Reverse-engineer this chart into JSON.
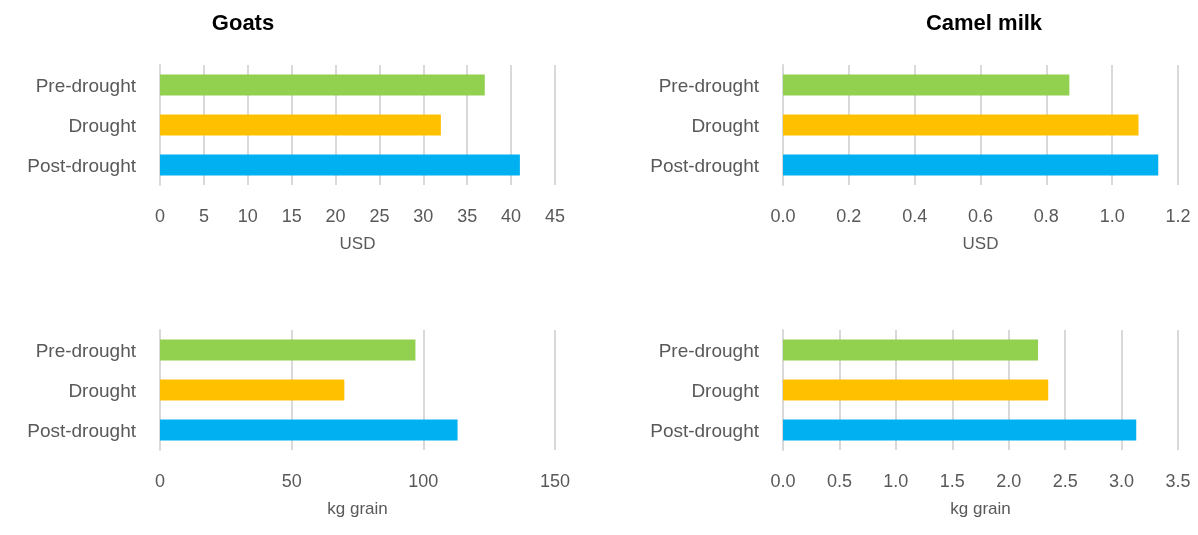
{
  "chart_data": [
    {
      "type": "bar",
      "orientation": "horizontal",
      "title": "Goats",
      "xlabel": "USD",
      "categories": [
        "Pre-drought",
        "Drought",
        "Post-drought"
      ],
      "values": [
        37,
        32,
        41
      ],
      "colors": [
        "#92d050",
        "#ffc000",
        "#00b0f0"
      ],
      "xlim": [
        0,
        45
      ],
      "xticks": [
        0,
        5,
        10,
        15,
        20,
        25,
        30,
        35,
        40,
        45
      ],
      "grid": "x"
    },
    {
      "type": "bar",
      "orientation": "horizontal",
      "title": "Camel milk",
      "xlabel": "USD",
      "categories": [
        "Pre-drought",
        "Drought",
        "Post-drought"
      ],
      "values": [
        0.87,
        1.08,
        1.14
      ],
      "colors": [
        "#92d050",
        "#ffc000",
        "#00b0f0"
      ],
      "xlim": [
        0,
        1.2
      ],
      "xticks": [
        {
          "value": 0,
          "label": "0.0"
        },
        0.2,
        0.4,
        0.6,
        0.8,
        {
          "value": 1,
          "label": "1.0"
        },
        1.2
      ],
      "grid": "x"
    },
    {
      "type": "bar",
      "orientation": "horizontal",
      "xlabel": "kg grain",
      "categories": [
        "Pre-drought",
        "Drought",
        "Post-drought"
      ],
      "values": [
        97,
        70,
        113
      ],
      "colors": [
        "#92d050",
        "#ffc000",
        "#00b0f0"
      ],
      "xlim": [
        0,
        150
      ],
      "xticks": [
        0,
        50,
        100,
        150
      ],
      "grid": "x"
    },
    {
      "type": "bar",
      "orientation": "horizontal",
      "xlabel": "kg grain",
      "categories": [
        "Pre-drought",
        "Drought",
        "Post-drought"
      ],
      "values": [
        2.26,
        2.35,
        3.13
      ],
      "colors": [
        "#92d050",
        "#ffc000",
        "#00b0f0"
      ],
      "xlim": [
        0,
        3.5
      ],
      "xticks": [
        {
          "value": 0,
          "label": "0.0"
        },
        0.5,
        {
          "value": 1,
          "label": "1.0"
        },
        1.5,
        {
          "value": 2,
          "label": "2.0"
        },
        2.5,
        {
          "value": 3,
          "label": "3.0"
        },
        3.5
      ],
      "grid": "x"
    }
  ]
}
